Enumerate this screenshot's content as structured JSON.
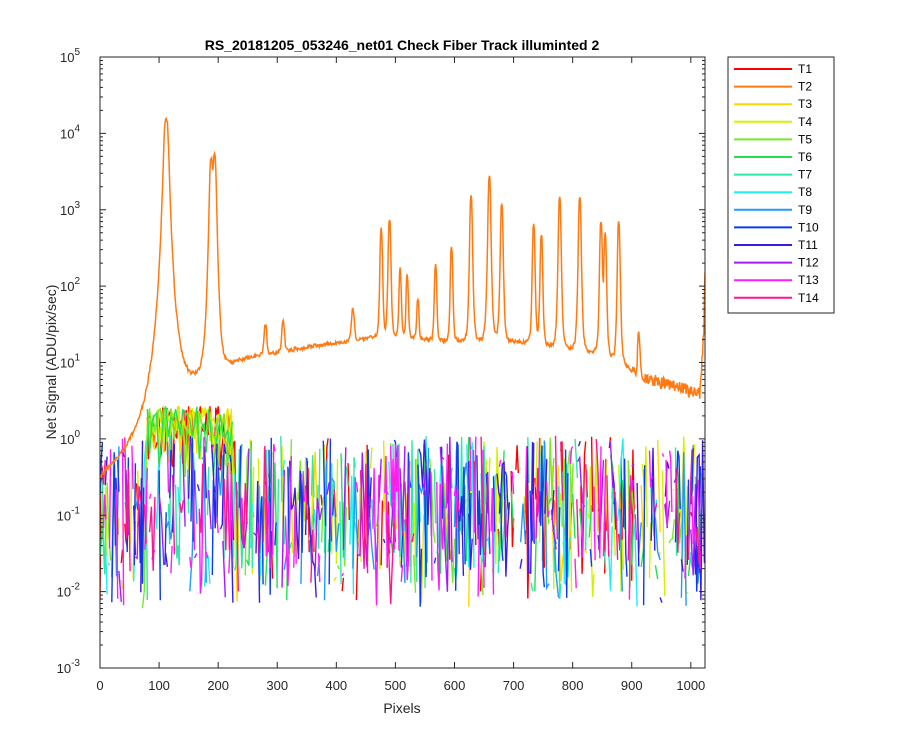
{
  "chart_data": {
    "type": "line",
    "title": "RS_20181205_053246_net01    Check Fiber      Track illuminted 2",
    "xlabel": "Pixels",
    "ylabel": "Net Signal (ADU/pix/sec)",
    "xlim": [
      0,
      1024
    ],
    "ylim": [
      0.001,
      100000
    ],
    "yscale": "log",
    "grid": false,
    "legend_position": "outside-top-right",
    "x_ticks": [
      0,
      100,
      200,
      300,
      400,
      500,
      600,
      700,
      800,
      900,
      1000
    ],
    "y_ticks": [
      {
        "value": 0.001,
        "base": "10",
        "exp": "-3"
      },
      {
        "value": 0.01,
        "base": "10",
        "exp": "-2"
      },
      {
        "value": 0.1,
        "base": "10",
        "exp": "-1"
      },
      {
        "value": 1,
        "base": "10",
        "exp": "0"
      },
      {
        "value": 10,
        "base": "10",
        "exp": "1"
      },
      {
        "value": 100,
        "base": "10",
        "exp": "2"
      },
      {
        "value": 1000,
        "base": "10",
        "exp": "3"
      },
      {
        "value": 10000,
        "base": "10",
        "exp": "4"
      },
      {
        "value": 100000,
        "base": "10",
        "exp": "5"
      }
    ],
    "series": [
      {
        "name": "T1",
        "color": "#ff0000"
      },
      {
        "name": "T2",
        "color": "#ff7a12",
        "emphasis": true,
        "baseline": [
          [
            0,
            0.3
          ],
          [
            40,
            0.6
          ],
          [
            70,
            1.2
          ],
          [
            90,
            2.5
          ],
          [
            100,
            4.5
          ],
          [
            110,
            6.5
          ],
          [
            120,
            8.5
          ],
          [
            130,
            7.5
          ],
          [
            140,
            6.5
          ],
          [
            150,
            6.0
          ],
          [
            160,
            6.0
          ],
          [
            170,
            6.2
          ],
          [
            180,
            7.0
          ],
          [
            200,
            7.5
          ],
          [
            230,
            10.5
          ],
          [
            260,
            12
          ],
          [
            300,
            13.5
          ],
          [
            350,
            16
          ],
          [
            400,
            18
          ],
          [
            450,
            21
          ],
          [
            500,
            22
          ],
          [
            550,
            20
          ],
          [
            600,
            19
          ],
          [
            650,
            19
          ],
          [
            700,
            19
          ],
          [
            750,
            17
          ],
          [
            800,
            15
          ],
          [
            850,
            13
          ],
          [
            880,
            10
          ],
          [
            910,
            7
          ],
          [
            950,
            5.5
          ],
          [
            980,
            4.8
          ],
          [
            1000,
            4.2
          ],
          [
            1015,
            4.0
          ],
          [
            1018,
            8
          ],
          [
            1022,
            25
          ],
          [
            1024,
            180
          ]
        ],
        "peaks": [
          [
            112,
            15500,
            3
          ],
          [
            188,
            4600,
            2
          ],
          [
            194,
            5200,
            2
          ],
          [
            280,
            18,
            2
          ],
          [
            310,
            20,
            2
          ],
          [
            428,
            31,
            2
          ],
          [
            476,
            540,
            1.5
          ],
          [
            490,
            720,
            1.5
          ],
          [
            508,
            145,
            1.5
          ],
          [
            520,
            115,
            1.5
          ],
          [
            538,
            48,
            1.5
          ],
          [
            568,
            165,
            1.5
          ],
          [
            595,
            300,
            1.5
          ],
          [
            628,
            1520,
            1.5
          ],
          [
            659,
            2900,
            1.5
          ],
          [
            680,
            1200,
            1.5
          ],
          [
            734,
            620,
            1.5
          ],
          [
            747,
            460,
            1.5
          ],
          [
            778,
            1480,
            1.5
          ],
          [
            812,
            1450,
            1.5
          ],
          [
            848,
            680,
            1.5
          ],
          [
            855,
            470,
            1.5
          ],
          [
            878,
            680,
            1.5
          ],
          [
            912,
            18,
            1.5
          ]
        ]
      },
      {
        "name": "T3",
        "color": "#ffd700"
      },
      {
        "name": "T4",
        "color": "#d7f000"
      },
      {
        "name": "T5",
        "color": "#7ae82a"
      },
      {
        "name": "T6",
        "color": "#22e051"
      },
      {
        "name": "T7",
        "color": "#2ee8a8"
      },
      {
        "name": "T8",
        "color": "#1ff0f0"
      },
      {
        "name": "T9",
        "color": "#1e9bff"
      },
      {
        "name": "T10",
        "color": "#0a3cf0"
      },
      {
        "name": "T11",
        "color": "#3c1ae8"
      },
      {
        "name": "T12",
        "color": "#a31aff"
      },
      {
        "name": "T13",
        "color": "#ff1aff"
      },
      {
        "name": "T14",
        "color": "#ff1493"
      }
    ],
    "noise_band": {
      "low": 0.006,
      "high": 1.1,
      "bright_region": [
        80,
        225
      ],
      "bright_high": 2.7
    }
  }
}
